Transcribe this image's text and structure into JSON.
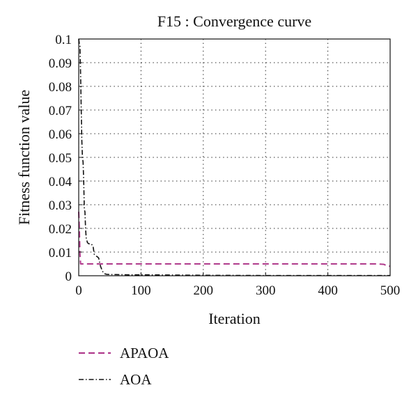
{
  "chart_data": {
    "type": "line",
    "title": "F15 : Convergence curve",
    "xlabel": "Iteration",
    "ylabel": "Fitness function value",
    "xlim": [
      0,
      500
    ],
    "ylim": [
      0,
      0.1
    ],
    "xticks": [
      0,
      100,
      200,
      300,
      400,
      500
    ],
    "yticks": [
      0,
      0.01,
      0.02,
      0.03,
      0.04,
      0.05,
      0.06,
      0.07,
      0.08,
      0.09,
      0.1
    ],
    "grid": true,
    "legend_position": "bottom-left",
    "series": [
      {
        "name": "APAOA",
        "color": "#b03a8c",
        "style": "dashed",
        "x": [
          0,
          1,
          2,
          3,
          4,
          5,
          480,
          490,
          495,
          500
        ],
        "y": [
          0.027,
          0.02,
          0.009,
          0.005,
          0.005,
          0.005,
          0.005,
          0.0048,
          0.0042,
          0.004
        ]
      },
      {
        "name": "AOA",
        "color": "#111111",
        "style": "dashdot",
        "x": [
          0,
          1,
          2,
          3,
          4,
          5,
          6,
          7,
          8,
          9,
          10,
          11,
          12,
          14,
          16,
          20,
          23,
          25,
          27,
          30,
          32,
          35,
          38,
          40,
          42,
          45,
          50,
          60,
          80,
          100,
          150,
          200,
          300,
          400,
          500
        ],
        "y": [
          0.1,
          0.098,
          0.097,
          0.085,
          0.07,
          0.057,
          0.05,
          0.048,
          0.04,
          0.028,
          0.027,
          0.02,
          0.016,
          0.014,
          0.0135,
          0.0135,
          0.0125,
          0.009,
          0.0085,
          0.008,
          0.0075,
          0.004,
          0.002,
          0.0012,
          0.0008,
          0.0006,
          0.0005,
          0.0005,
          0.0004,
          0.0004,
          0.0003,
          0.0002,
          0.0001,
          0.0001,
          0.0001
        ]
      }
    ]
  }
}
